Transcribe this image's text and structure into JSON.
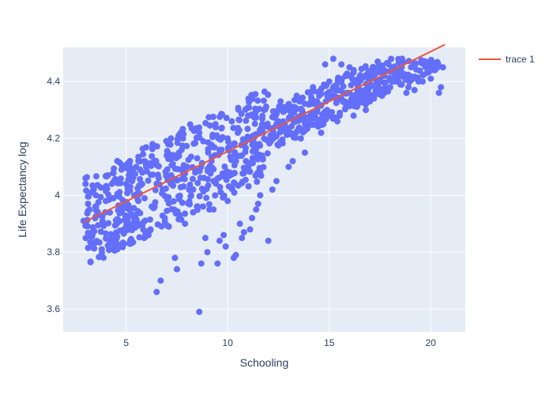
{
  "chart_data": {
    "type": "scatter",
    "xlabel": "Schooling",
    "ylabel": "Life Expectancy log",
    "xlim": [
      1.9,
      21.7
    ],
    "ylim": [
      3.52,
      4.52
    ],
    "x_ticks": [
      5,
      10,
      15,
      20
    ],
    "x_tick_labels": [
      "5",
      "10",
      "15",
      "20"
    ],
    "y_ticks": [
      3.6,
      3.8,
      4.0,
      4.2,
      4.4
    ],
    "y_tick_labels": [
      "3.6",
      "3.8",
      "4",
      "4.2",
      "4.4"
    ],
    "grid": true,
    "legend_position": "top-right",
    "plot_bgcolor": "#e5ecf6",
    "series": [
      {
        "type": "scatter",
        "mode": "markers",
        "color": "#636efa",
        "x": [
          2.9,
          3.0,
          3.4,
          3.8,
          4.1,
          4.4,
          4.6,
          4.9,
          5.2,
          5.5,
          5.8,
          6.1,
          6.3,
          6.7,
          7.0,
          7.4,
          7.8,
          8.2,
          8.6,
          9.0,
          9.4,
          9.8,
          10.2,
          10.6,
          11.0,
          11.4,
          11.8,
          12.2,
          12.6,
          13.0,
          13.4,
          13.8,
          14.2,
          14.6,
          15.0,
          15.4,
          15.8,
          16.2,
          16.6,
          17.0,
          17.4,
          17.8,
          18.2,
          18.6,
          19.0,
          19.4,
          19.8,
          20.2,
          20.6,
          20.5,
          20.4,
          20.0,
          19.6,
          19.2,
          18.8,
          18.4,
          18.0,
          17.6,
          17.2,
          16.8,
          16.4,
          16.0,
          15.6,
          15.2,
          14.8,
          14.4,
          14.0,
          13.6,
          13.2,
          12.8,
          12.4,
          12.0,
          11.6,
          11.2,
          10.8,
          10.4,
          10.0,
          9.6,
          9.2,
          8.8,
          8.4,
          8.0,
          7.6,
          7.2,
          6.8,
          6.4,
          6.0,
          5.6,
          5.2,
          4.8,
          4.4,
          4.0,
          3.6,
          3.2,
          3.0,
          5.0,
          5.4,
          5.9,
          6.2,
          6.6,
          6.9,
          7.3,
          7.7,
          8.1,
          8.5,
          8.6,
          8.9,
          9.3,
          9.7,
          10.1,
          10.5,
          10.9,
          11.3,
          11.7,
          12.1,
          12.5,
          12.9,
          13.3,
          13.7,
          14.1,
          14.5,
          14.9,
          15.3,
          15.7,
          16.1,
          16.5,
          16.9,
          17.3,
          17.7,
          18.1,
          18.5,
          18.9,
          19.3,
          9.5,
          9.9,
          10.3,
          10.7,
          11.1,
          11.5,
          6.5,
          7.1,
          7.5,
          7.9,
          8.3,
          8.7,
          9.1,
          9.6,
          10.0,
          10.4,
          10.8,
          11.2,
          11.6,
          12.0,
          12.4,
          12.8,
          13.2,
          13.6,
          14.0,
          14.4,
          14.8,
          15.2,
          15.6,
          16.0,
          16.4,
          16.8,
          17.2
        ],
        "y": [
          3.91,
          4.06,
          4.02,
          3.81,
          4.07,
          3.82,
          4.05,
          3.83,
          3.84,
          4.1,
          4.08,
          3.86,
          4.18,
          3.7,
          4.14,
          3.78,
          4.2,
          4.0,
          4.22,
          3.8,
          4.25,
          3.86,
          4.26,
          3.9,
          4.28,
          3.95,
          4.3,
          4.02,
          4.33,
          4.1,
          4.35,
          4.15,
          4.38,
          4.22,
          4.4,
          4.26,
          4.42,
          4.28,
          4.41,
          4.33,
          4.39,
          4.37,
          4.4,
          4.42,
          4.41,
          4.4,
          4.43,
          4.44,
          4.45,
          4.38,
          4.36,
          4.41,
          4.4,
          4.37,
          4.36,
          4.4,
          4.38,
          4.35,
          4.34,
          4.32,
          4.37,
          4.36,
          4.4,
          4.48,
          4.46,
          4.3,
          4.32,
          4.28,
          4.27,
          4.31,
          4.25,
          4.24,
          4.22,
          4.28,
          4.18,
          4.14,
          4.2,
          4.16,
          4.12,
          4.19,
          4.08,
          4.1,
          4.15,
          4.06,
          4.02,
          3.96,
          4.1,
          3.98,
          4.03,
          3.96,
          4.05,
          3.98,
          3.93,
          3.95,
          4.04,
          4.04,
          4.0,
          4.12,
          3.88,
          4.06,
          3.92,
          4.11,
          4.09,
          4.02,
          4.13,
          3.59,
          3.85,
          3.95,
          4.16,
          4.08,
          4.22,
          4.12,
          4.16,
          4.25,
          4.2,
          4.26,
          4.22,
          4.31,
          4.29,
          4.33,
          4.35,
          4.3,
          4.37,
          4.36,
          4.34,
          4.4,
          4.38,
          4.36,
          4.42,
          4.4,
          4.39,
          4.38,
          4.41,
          3.76,
          3.82,
          3.78,
          3.85,
          3.88,
          3.97,
          3.66,
          3.89,
          3.74,
          3.9,
          3.94,
          3.76,
          3.95,
          3.84,
          3.98,
          3.79,
          3.87,
          3.92,
          4.0,
          3.84,
          4.05,
          4.3,
          4.12,
          4.2,
          4.25,
          4.33,
          4.28,
          4.35,
          4.46,
          4.45,
          4.39,
          4.3,
          4.35
        ]
      },
      {
        "name": "trace 1",
        "type": "line",
        "color": "#ef553b",
        "x": [
          2.9,
          20.7
        ],
        "y": [
          3.905,
          4.53
        ]
      }
    ]
  }
}
